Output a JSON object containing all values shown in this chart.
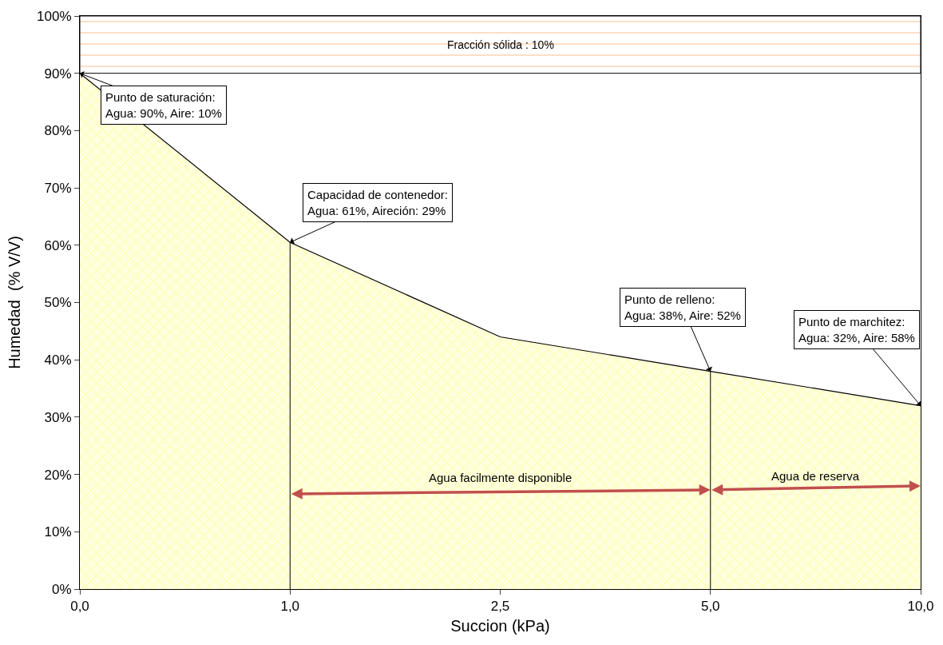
{
  "chart_data": {
    "type": "area",
    "xlabel": "Succion (kPa)",
    "ylabel": "Humedad  (% V/V)",
    "categories": [
      "0,0",
      "1,0",
      "2,5",
      "5,0",
      "10,0"
    ],
    "series": [
      {
        "color": "#ffff99",
        "values": [
          90,
          60.5,
          44,
          38,
          32
        ]
      }
    ],
    "ylim": [
      0,
      100
    ],
    "yticks": [
      {
        "value": 0,
        "label": "0%"
      },
      {
        "value": 10,
        "label": "10%"
      },
      {
        "value": 20,
        "label": "20%"
      },
      {
        "value": 30,
        "label": "30%"
      },
      {
        "value": 40,
        "label": "40%"
      },
      {
        "value": 50,
        "label": "50%"
      },
      {
        "value": 60,
        "label": "60%"
      },
      {
        "value": 70,
        "label": "70%"
      },
      {
        "value": 80,
        "label": "80%"
      },
      {
        "value": 90,
        "label": "90%"
      },
      {
        "value": 100,
        "label": "100%"
      }
    ],
    "bands": [
      {
        "axis": "y",
        "from": 90,
        "to": 100,
        "label": "Fracción sólida : 10%",
        "color": "#fac090"
      }
    ],
    "ref_lines": [
      {
        "axis": "x",
        "value": "1,0",
        "color": "#000000"
      },
      {
        "axis": "x",
        "value": "5,0",
        "color": "#000000"
      }
    ],
    "annotations": [
      {
        "text": "Punto de saturación:\nAgua: 90%, Aire: 10%",
        "x": "0,0",
        "y": 90
      },
      {
        "text": "Capacidad de contenedor:\nAgua: 61%, Aireción: 29%",
        "x": "1,0",
        "y": 60.5
      },
      {
        "text": "Punto de relleno:\nAgua: 38%, Aire: 52%",
        "x": "5,0",
        "y": 38
      },
      {
        "text": "Punto de marchitez:\nAgua: 32%, Aire: 58%",
        "x": "10,0",
        "y": 32
      },
      "Agua facilmente disponible",
      "Agua de reserva"
    ]
  }
}
